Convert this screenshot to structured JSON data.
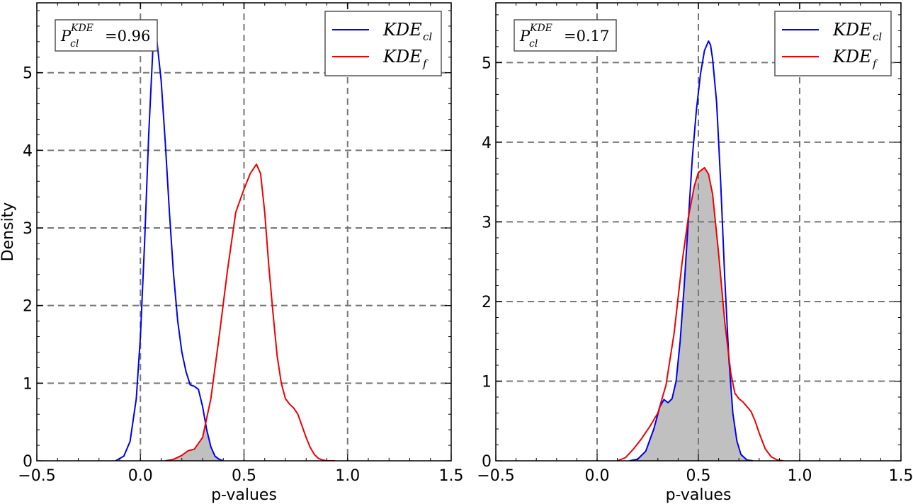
{
  "chart_data": [
    {
      "type": "line",
      "xlabel": "p-values",
      "ylabel": "Density",
      "xlim": [
        -0.5,
        1.5
      ],
      "ylim": [
        0,
        5.9
      ],
      "xticks": [
        -0.5,
        0.0,
        0.5,
        1.0,
        1.5
      ],
      "xtick_labels": [
        "−0.5",
        "0.0",
        "0.5",
        "1.0",
        "1.5"
      ],
      "yticks": [
        0,
        1,
        2,
        3,
        4,
        5
      ],
      "ytick_labels": [
        "0",
        "1",
        "2",
        "3",
        "4",
        "5"
      ],
      "grid": true,
      "legend_placement": "top-right",
      "annotation": {
        "prefix": "P",
        "superscript": "KDE",
        "subscript": "cl",
        "value_text": "=0.96"
      },
      "overlap_fill": "#c0c0c0",
      "series": [
        {
          "name": "KDE_cl",
          "label_main": "KDE",
          "label_sub": "cl",
          "color": "#0000ee",
          "x": [
            -0.12,
            -0.08,
            -0.05,
            -0.02,
            0.0,
            0.02,
            0.04,
            0.06,
            0.07,
            0.08,
            0.1,
            0.12,
            0.14,
            0.16,
            0.18,
            0.2,
            0.22,
            0.24,
            0.26,
            0.28,
            0.3,
            0.32,
            0.34,
            0.36,
            0.38,
            0.4
          ],
          "y": [
            0.0,
            0.06,
            0.25,
            0.8,
            1.6,
            2.8,
            4.2,
            5.3,
            5.5,
            5.4,
            4.9,
            4.1,
            3.2,
            2.4,
            1.8,
            1.4,
            1.15,
            0.98,
            0.96,
            0.92,
            0.7,
            0.4,
            0.18,
            0.06,
            0.02,
            0.0
          ]
        },
        {
          "name": "KDE_f",
          "label_main": "KDE",
          "label_sub": "f",
          "color": "#ee0000",
          "x": [
            0.12,
            0.16,
            0.2,
            0.23,
            0.26,
            0.3,
            0.34,
            0.38,
            0.42,
            0.46,
            0.5,
            0.53,
            0.56,
            0.58,
            0.6,
            0.62,
            0.64,
            0.66,
            0.68,
            0.7,
            0.72,
            0.74,
            0.76,
            0.78,
            0.8,
            0.82,
            0.84,
            0.86,
            0.88,
            0.9,
            0.92,
            0.94
          ],
          "y": [
            0.0,
            0.02,
            0.07,
            0.13,
            0.15,
            0.3,
            0.8,
            1.6,
            2.45,
            3.2,
            3.5,
            3.7,
            3.82,
            3.7,
            3.2,
            2.5,
            1.9,
            1.35,
            1.0,
            0.8,
            0.73,
            0.68,
            0.6,
            0.45,
            0.3,
            0.17,
            0.08,
            0.03,
            0.01,
            0.0,
            0.0,
            0.0
          ]
        }
      ]
    },
    {
      "type": "line",
      "xlabel": "p-values",
      "ylabel": "",
      "xlim": [
        -0.5,
        1.5
      ],
      "ylim": [
        0,
        5.75
      ],
      "xticks": [
        -0.5,
        0.0,
        0.5,
        1.0,
        1.5
      ],
      "xtick_labels": [
        "−0.5",
        "0.0",
        "0.5",
        "1.0",
        "1.5"
      ],
      "yticks": [
        0,
        1,
        2,
        3,
        4,
        5
      ],
      "ytick_labels": [
        "0",
        "1",
        "2",
        "3",
        "4",
        "5"
      ],
      "grid": true,
      "legend_placement": "top-right",
      "annotation": {
        "prefix": "P",
        "superscript": "KDE",
        "subscript": "cl",
        "value_text": "=0.17"
      },
      "overlap_fill": "#c0c0c0",
      "series": [
        {
          "name": "KDE_cl",
          "label_main": "KDE",
          "label_sub": "cl",
          "color": "#0000ee",
          "x": [
            0.16,
            0.2,
            0.24,
            0.28,
            0.31,
            0.33,
            0.35,
            0.37,
            0.39,
            0.41,
            0.43,
            0.45,
            0.47,
            0.49,
            0.51,
            0.53,
            0.55,
            0.56,
            0.57,
            0.59,
            0.61,
            0.63,
            0.65,
            0.67,
            0.69,
            0.71,
            0.74,
            0.77
          ],
          "y": [
            0.0,
            0.02,
            0.12,
            0.4,
            0.68,
            0.77,
            0.73,
            0.78,
            1.0,
            1.5,
            2.2,
            3.0,
            3.8,
            4.4,
            4.85,
            5.15,
            5.27,
            5.22,
            5.05,
            4.5,
            3.5,
            2.3,
            1.3,
            0.6,
            0.25,
            0.08,
            0.01,
            0.0
          ]
        },
        {
          "name": "KDE_f",
          "label_main": "KDE",
          "label_sub": "f",
          "color": "#ee0000",
          "x": [
            0.1,
            0.14,
            0.18,
            0.22,
            0.26,
            0.3,
            0.34,
            0.38,
            0.42,
            0.45,
            0.48,
            0.5,
            0.53,
            0.55,
            0.57,
            0.6,
            0.63,
            0.66,
            0.68,
            0.7,
            0.72,
            0.74,
            0.76,
            0.78,
            0.8,
            0.83,
            0.86,
            0.89,
            0.92
          ],
          "y": [
            0.0,
            0.04,
            0.15,
            0.28,
            0.43,
            0.6,
            0.95,
            1.6,
            2.5,
            3.05,
            3.45,
            3.62,
            3.68,
            3.6,
            3.35,
            2.6,
            1.75,
            1.1,
            0.85,
            0.78,
            0.74,
            0.68,
            0.62,
            0.5,
            0.35,
            0.15,
            0.05,
            0.01,
            0.0
          ]
        }
      ]
    }
  ]
}
